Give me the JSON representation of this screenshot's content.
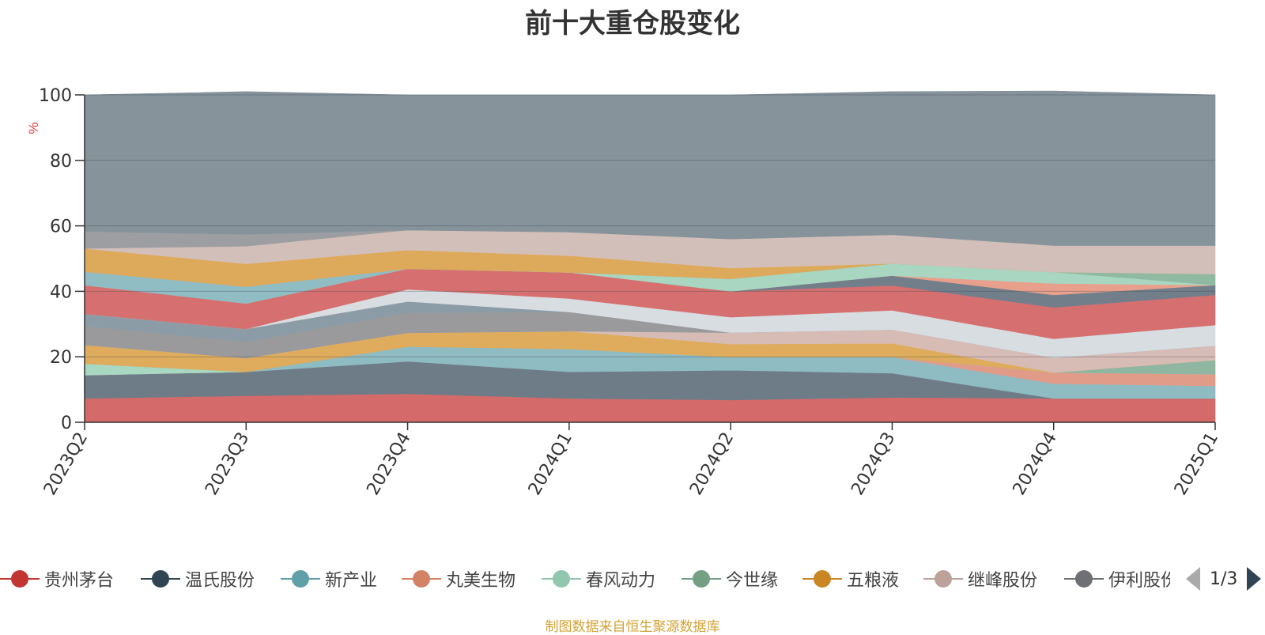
{
  "chart_data": {
    "type": "area",
    "stacked": true,
    "title": "前十大重仓股变化",
    "ylabel": "%",
    "ylim": [
      0,
      100
    ],
    "y_ticks": [
      "0",
      "20",
      "40",
      "60",
      "80",
      "100"
    ],
    "categories": [
      "2023Q2",
      "2023Q3",
      "2023Q4",
      "2024Q1",
      "2024Q2",
      "2024Q3",
      "2024Q4",
      "2025Q1"
    ],
    "grid": true,
    "legend_position": "bottom",
    "series": [
      {
        "name": "贵州茅台",
        "color": "#d46a6a",
        "values": [
          7.3,
          8.1,
          8.7,
          7.3,
          6.8,
          7.6,
          7.3,
          7.3
        ]
      },
      {
        "name": "温氏股份",
        "color": "#6e7c88",
        "values": [
          7.1,
          7.3,
          9.9,
          8.1,
          9.1,
          7.4,
          0,
          0
        ]
      },
      {
        "name": "新产业",
        "color": "#8fbbc2",
        "values": [
          0,
          0,
          4.5,
          7.0,
          4.0,
          4.9,
          4.5,
          3.8
        ]
      },
      {
        "name": "丸美生物",
        "color": "#e09c89",
        "values": [
          0,
          0,
          0,
          0,
          0,
          0,
          3.4,
          3.6
        ]
      },
      {
        "name": "春风动力",
        "color": "#a8d8c2",
        "values": [
          3.5,
          0,
          0,
          0,
          0,
          0,
          0,
          0
        ]
      },
      {
        "name": "今世缘",
        "color": "#8fb6a0",
        "values": [
          0,
          0,
          0,
          0,
          0,
          0,
          0,
          4.3
        ]
      },
      {
        "name": "五粮液",
        "color": "#deac5c",
        "values": [
          5.7,
          4.2,
          4.2,
          5.4,
          4.0,
          4.2,
          0,
          0
        ]
      },
      {
        "name": "继峰股份",
        "color": "#d7bcb6",
        "values": [
          0,
          0,
          0,
          0,
          3.5,
          4.2,
          4.5,
          4.4
        ]
      },
      {
        "name": "伊利股份",
        "color": "#9a9a9c",
        "values": [
          5.8,
          5.0,
          6.2,
          5.9,
          0,
          0,
          0,
          0
        ]
      },
      {
        "name": "",
        "color": "#8c9ca6",
        "values": [
          3.7,
          3.9,
          3.4,
          0,
          0,
          0,
          0,
          0
        ]
      },
      {
        "name": "",
        "color": "#d8dde2",
        "values": [
          0,
          0,
          3.7,
          4.1,
          4.7,
          5.9,
          5.8,
          6.3
        ]
      },
      {
        "name": "",
        "color": "#d67070",
        "values": [
          8.8,
          7.8,
          6.3,
          8.0,
          7.9,
          7.6,
          9.6,
          9.2
        ]
      },
      {
        "name": "",
        "color": "#727f8b",
        "values": [
          0,
          0,
          0,
          0,
          0,
          3.0,
          3.8,
          3.0
        ]
      },
      {
        "name": "",
        "color": "#e8a08c",
        "values": [
          0,
          0,
          0,
          0,
          0,
          0,
          3.5,
          0
        ]
      },
      {
        "name": "",
        "color": "#a9d6c0",
        "values": [
          0,
          0,
          0,
          0,
          3.8,
          3.7,
          3.5,
          0
        ]
      },
      {
        "name": "",
        "color": "#90b9a1",
        "values": [
          0,
          0,
          0,
          0,
          0,
          0,
          0,
          3.4
        ]
      },
      {
        "name": "",
        "color": "#90bcc4",
        "values": [
          4.1,
          5.1,
          0,
          0,
          0,
          0,
          0,
          0
        ]
      },
      {
        "name": "",
        "color": "#ddaa5c",
        "values": [
          7.1,
          7.0,
          5.7,
          5.1,
          3.3,
          0,
          0,
          0
        ]
      },
      {
        "name": "",
        "color": "#d3bfb9",
        "values": [
          0,
          5.4,
          6.1,
          7.2,
          8.9,
          8.8,
          8.1,
          8.7
        ]
      },
      {
        "name": "",
        "color": "#9c9ea2",
        "values": [
          5.2,
          3.6,
          0,
          0,
          0,
          0,
          0,
          0
        ]
      },
      {
        "name": "",
        "color": "#86939b",
        "values": [
          41.7,
          43.6,
          41.3,
          41.9,
          44.0,
          43.7,
          47.2,
          46.0
        ]
      }
    ]
  },
  "legend": {
    "items": [
      {
        "label": "贵州茅台",
        "color": "#c23531"
      },
      {
        "label": "温氏股份",
        "color": "#2f4554"
      },
      {
        "label": "新产业",
        "color": "#61a0a8"
      },
      {
        "label": "丸美生物",
        "color": "#d48265"
      },
      {
        "label": "春风动力",
        "color": "#91c7ae"
      },
      {
        "label": "今世缘",
        "color": "#749f83"
      },
      {
        "label": "五粮液",
        "color": "#ca8622"
      },
      {
        "label": "继峰股份",
        "color": "#bda29a"
      },
      {
        "label": "伊利股份",
        "color": "#6e7074"
      }
    ],
    "pager": "1/3"
  },
  "source_note": "制图数据来自恒生聚源数据库"
}
